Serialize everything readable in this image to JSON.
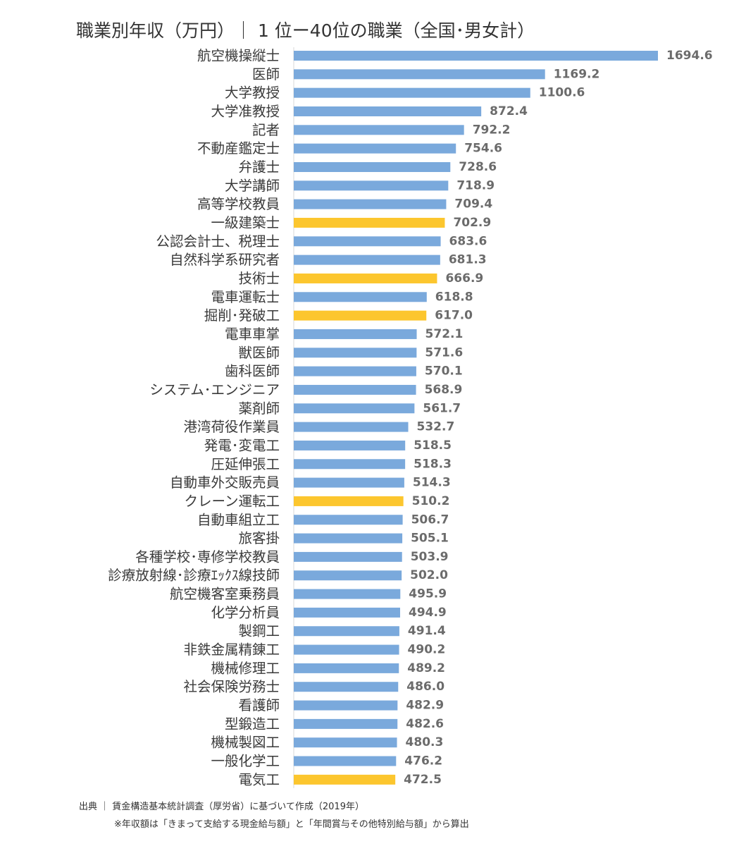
{
  "title": "職業別年収（万円）｜ 1 位ー40位の職業（全国･男女計）",
  "source": "出典 ｜ 賃金構造基本統計調査（厚労省）に基づいて作成（2019年）",
  "note": "※年収額は「きまって支給する現金給与額」と「年間賞与その他特別給与額」から算出",
  "colors": {
    "default": "#7aa9dc",
    "highlight": "#fcc62e"
  },
  "chart_data": {
    "type": "bar",
    "orientation": "horizontal",
    "title": "職業別年収（万円）｜ 1 位ー40位の職業（全国･男女計）",
    "xlabel": "",
    "ylabel": "",
    "xlim": [
      0,
      1694.6
    ],
    "grid": false,
    "categories": [
      "航空機操縦士",
      "医師",
      "大学教授",
      "大学准教授",
      "記者",
      "不動産鑑定士",
      "弁護士",
      "大学講師",
      "高等学校教員",
      "一級建築士",
      "公認会計士、税理士",
      "自然科学系研究者",
      "技術士",
      "電車運転士",
      "掘削･発破工",
      "電車車掌",
      "獣医師",
      "歯科医師",
      "システム･エンジニア",
      "薬剤師",
      "港湾荷役作業員",
      "発電･変電工",
      "圧延伸張工",
      "自動車外交販売員",
      "クレーン運転工",
      "自動車組立工",
      "旅客掛",
      "各種学校･専修学校教員",
      "診療放射線･診療ｴｯｸｽ線技師",
      "航空機客室乗務員",
      "化学分析員",
      "製鋼工",
      "非鉄金属精錬工",
      "機械修理工",
      "社会保険労務士",
      "看護師",
      "型鍛造工",
      "機械製図工",
      "一般化学工",
      "電気工"
    ],
    "values": [
      1694.6,
      1169.2,
      1100.6,
      872.4,
      792.2,
      754.6,
      728.6,
      718.9,
      709.4,
      702.9,
      683.6,
      681.3,
      666.9,
      618.8,
      617.0,
      572.1,
      571.6,
      570.1,
      568.9,
      561.7,
      532.7,
      518.5,
      518.3,
      514.3,
      510.2,
      506.7,
      505.1,
      503.9,
      502.0,
      495.9,
      494.9,
      491.4,
      490.2,
      489.2,
      486.0,
      482.9,
      482.6,
      480.3,
      476.2,
      472.5
    ],
    "value_labels": [
      "1694.6",
      "1169.2",
      "1100.6",
      "872.4",
      "792.2",
      "754.6",
      "728.6",
      "718.9",
      "709.4",
      "702.9",
      "683.6",
      "681.3",
      "666.9",
      "618.8",
      "617.0",
      "572.1",
      "571.6",
      "570.1",
      "568.9",
      "561.7",
      "532.7",
      "518.5",
      "518.3",
      "514.3",
      "510.2",
      "506.7",
      "505.1",
      "503.9",
      "502.0",
      "495.9",
      "494.9",
      "491.4",
      "490.2",
      "489.2",
      "486.0",
      "482.9",
      "482.6",
      "480.3",
      "476.2",
      "472.5"
    ],
    "highlighted": [
      "一級建築士",
      "技術士",
      "掘削･発破工",
      "クレーン運転工",
      "電気工"
    ]
  }
}
